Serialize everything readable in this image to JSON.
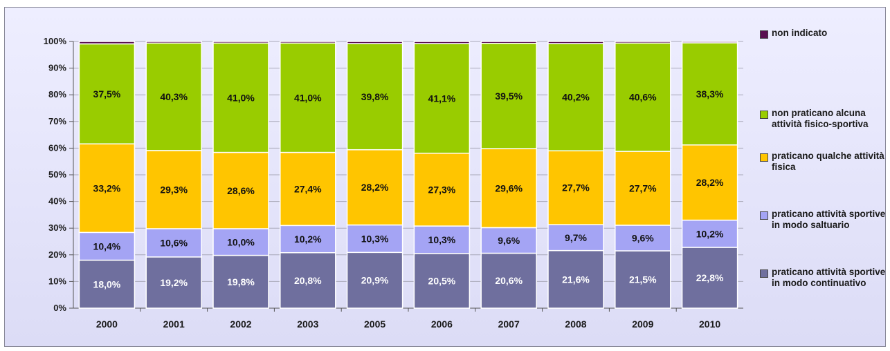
{
  "chart_data": {
    "type": "bar",
    "stacked": true,
    "categories": [
      "2000",
      "2001",
      "2002",
      "2003",
      "2005",
      "2006",
      "2007",
      "2008",
      "2009",
      "2010"
    ],
    "ylim": [
      0,
      100
    ],
    "yticks": [
      "0%",
      "10%",
      "20%",
      "30%",
      "40%",
      "50%",
      "60%",
      "70%",
      "80%",
      "90%",
      "100%"
    ],
    "grid": true,
    "legend_position": "right",
    "series": [
      {
        "name": "praticano attività sportive in modo continuativo",
        "color": "#6f6f9e",
        "label_color": "#ffffff",
        "values": [
          18.0,
          19.2,
          19.8,
          20.8,
          20.9,
          20.5,
          20.6,
          21.6,
          21.5,
          22.8
        ],
        "labels": [
          "18,0%",
          "19,2%",
          "19,8%",
          "20,8%",
          "20,9%",
          "20,5%",
          "20,6%",
          "21,6%",
          "21,5%",
          "22,8%"
        ]
      },
      {
        "name": "praticano attività sportive in modo saltuario",
        "color": "#a4a4f4",
        "label_color": "#111111",
        "values": [
          10.4,
          10.6,
          10.0,
          10.2,
          10.3,
          10.3,
          9.6,
          9.7,
          9.6,
          10.2
        ],
        "labels": [
          "10,4%",
          "10,6%",
          "10,0%",
          "10,2%",
          "10,3%",
          "10,3%",
          "9,6%",
          "9,7%",
          "9,6%",
          "10,2%"
        ]
      },
      {
        "name": "praticano qualche attività fisica",
        "color": "#ffc500",
        "label_color": "#111111",
        "values": [
          33.2,
          29.3,
          28.6,
          27.4,
          28.2,
          27.3,
          29.6,
          27.7,
          27.7,
          28.2
        ],
        "labels": [
          "33,2%",
          "29,3%",
          "28,6%",
          "27,4%",
          "28,2%",
          "27,3%",
          "29,6%",
          "27,7%",
          "27,7%",
          "28,2%"
        ]
      },
      {
        "name": "non praticano alcuna attività fisico-sportiva",
        "color": "#99cc00",
        "label_color": "#111111",
        "values": [
          37.5,
          40.3,
          41.0,
          41.0,
          39.8,
          41.1,
          39.5,
          40.2,
          40.6,
          38.3
        ],
        "labels": [
          "37,5%",
          "40,3%",
          "41,0%",
          "41,0%",
          "39,8%",
          "41,1%",
          "39,5%",
          "40,2%",
          "40,6%",
          "38,3%"
        ]
      },
      {
        "name": "non indicato",
        "color": "#5a1050",
        "label_color": "#ffffff",
        "values": [
          0.9,
          0.6,
          0.6,
          0.6,
          0.8,
          0.8,
          0.7,
          0.8,
          0.6,
          0.5
        ],
        "labels": []
      }
    ],
    "legend": [
      {
        "text": "non indicato",
        "color": "#5a1050"
      },
      {
        "text": "non praticano alcuna attività fisico-sportiva",
        "color": "#99cc00"
      },
      {
        "text": "praticano qualche attività fisica",
        "color": "#ffc500"
      },
      {
        "text": "praticano attività sportive in modo saltuario",
        "color": "#a4a4f4"
      },
      {
        "text": "praticano attività sportive in modo continuativo",
        "color": "#6f6f9e"
      }
    ]
  }
}
